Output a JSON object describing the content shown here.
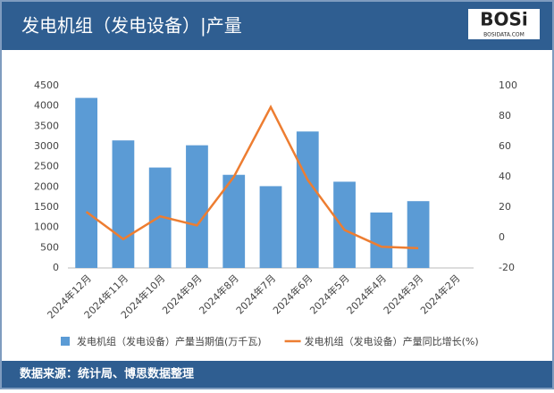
{
  "header": {
    "title": "发电机组（发电设备）|产量",
    "logo": "BOSi",
    "logo_sub": "BOSIDATA.COM"
  },
  "footer": {
    "source": "数据来源：统计局、博思数据整理"
  },
  "chart_data": {
    "type": "bar",
    "categories": [
      "2024年12月",
      "2024年11月",
      "2024年10月",
      "2024年9月",
      "2024年8月",
      "2024年7月",
      "2024年6月",
      "2024年5月",
      "2024年4月",
      "2024年3月",
      "2024年2月"
    ],
    "series": [
      {
        "name": "发电机组（发电设备）产量当期值(万千瓦)",
        "type": "bar",
        "color": "#5b9bd5",
        "values": [
          4200,
          3150,
          2480,
          3030,
          2300,
          2020,
          3370,
          2130,
          1370,
          1650,
          null
        ]
      },
      {
        "name": "发电机组（发电设备）产量同比增长(%)",
        "type": "line",
        "axis": "y2",
        "color": "#ed7d31",
        "values": [
          17,
          -1,
          14,
          8,
          40,
          86,
          38,
          5,
          -6,
          -7,
          null
        ]
      }
    ],
    "ylim": [
      0,
      4500
    ],
    "yticks": [
      0,
      500,
      1000,
      1500,
      2000,
      2500,
      3000,
      3500,
      4000,
      4500
    ],
    "y2lim": [
      -20,
      100
    ],
    "y2ticks": [
      -20,
      0,
      20,
      40,
      60,
      80,
      100
    ],
    "legend": "bottom"
  }
}
